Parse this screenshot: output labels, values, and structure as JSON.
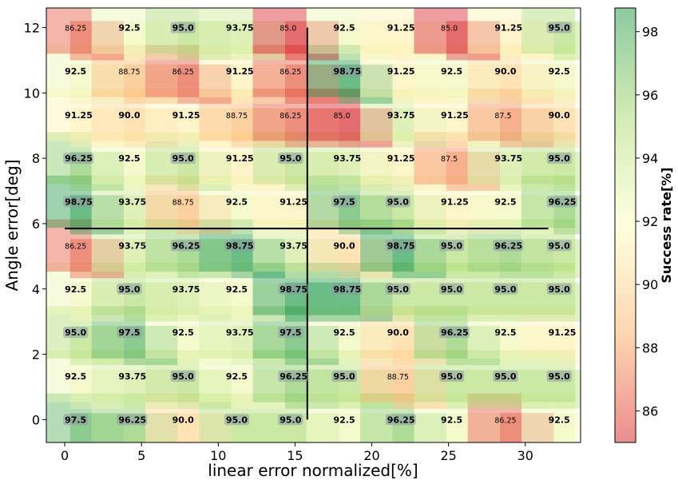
{
  "chart_data": {
    "type": "heatmap",
    "title": "",
    "xlabel": "linear error normalized[%]",
    "ylabel": "Angle error[deg]",
    "colorbar_label": "Success rate[%]",
    "xlim": [
      -1.2,
      33.6
    ],
    "ylim": [
      -0.7,
      12.6
    ],
    "x_ticks": [
      0,
      5,
      10,
      15,
      20,
      25,
      30
    ],
    "y_ticks": [
      0,
      2,
      4,
      6,
      8,
      10,
      12
    ],
    "colorbar_ticks": [
      86,
      88,
      90,
      92,
      94,
      96,
      98
    ],
    "colorbar_range": [
      85,
      98.75
    ],
    "colormap": [
      "#d7191c",
      "#fdae61",
      "#ffffbf",
      "#a6d96a",
      "#1a9641"
    ],
    "x": [
      0,
      3.5,
      7,
      10.5,
      14,
      17.5,
      21,
      24.5,
      28,
      31.5
    ],
    "y": [
      0,
      1.33,
      2.67,
      4,
      5.33,
      6.67,
      8,
      9.33,
      10.67,
      12
    ],
    "values": [
      [
        97.5,
        96.25,
        90.0,
        95.0,
        95.0,
        92.5,
        96.25,
        92.5,
        86.25,
        92.5
      ],
      [
        92.5,
        93.75,
        95.0,
        92.5,
        96.25,
        95.0,
        88.75,
        95.0,
        95.0,
        95.0
      ],
      [
        95.0,
        97.5,
        92.5,
        93.75,
        97.5,
        92.5,
        90.0,
        96.25,
        92.5,
        91.25
      ],
      [
        92.5,
        95.0,
        93.75,
        92.5,
        98.75,
        98.75,
        95.0,
        95.0,
        95.0,
        95.0
      ],
      [
        86.25,
        93.75,
        96.25,
        98.75,
        93.75,
        90.0,
        98.75,
        95.0,
        96.25,
        95.0
      ],
      [
        98.75,
        93.75,
        88.75,
        92.5,
        91.25,
        97.5,
        95.0,
        91.25,
        92.5,
        96.25
      ],
      [
        96.25,
        92.5,
        95.0,
        91.25,
        95.0,
        93.75,
        91.25,
        87.5,
        93.75,
        95.0
      ],
      [
        91.25,
        90.0,
        91.25,
        88.75,
        86.25,
        85.0,
        93.75,
        91.25,
        87.5,
        90.0
      ],
      [
        92.5,
        88.75,
        86.25,
        91.25,
        86.25,
        98.75,
        91.25,
        92.5,
        90.0,
        92.5
      ],
      [
        86.25,
        92.5,
        95.0,
        93.75,
        85.0,
        92.5,
        91.25,
        85.0,
        91.25,
        95.0
      ]
    ],
    "crosshair": {
      "x_center": 15.8,
      "y_center": 5.85,
      "x_range": [
        0,
        31.5
      ],
      "y_range": [
        0,
        12
      ]
    },
    "grid": false,
    "legend": "colorbar-right"
  }
}
